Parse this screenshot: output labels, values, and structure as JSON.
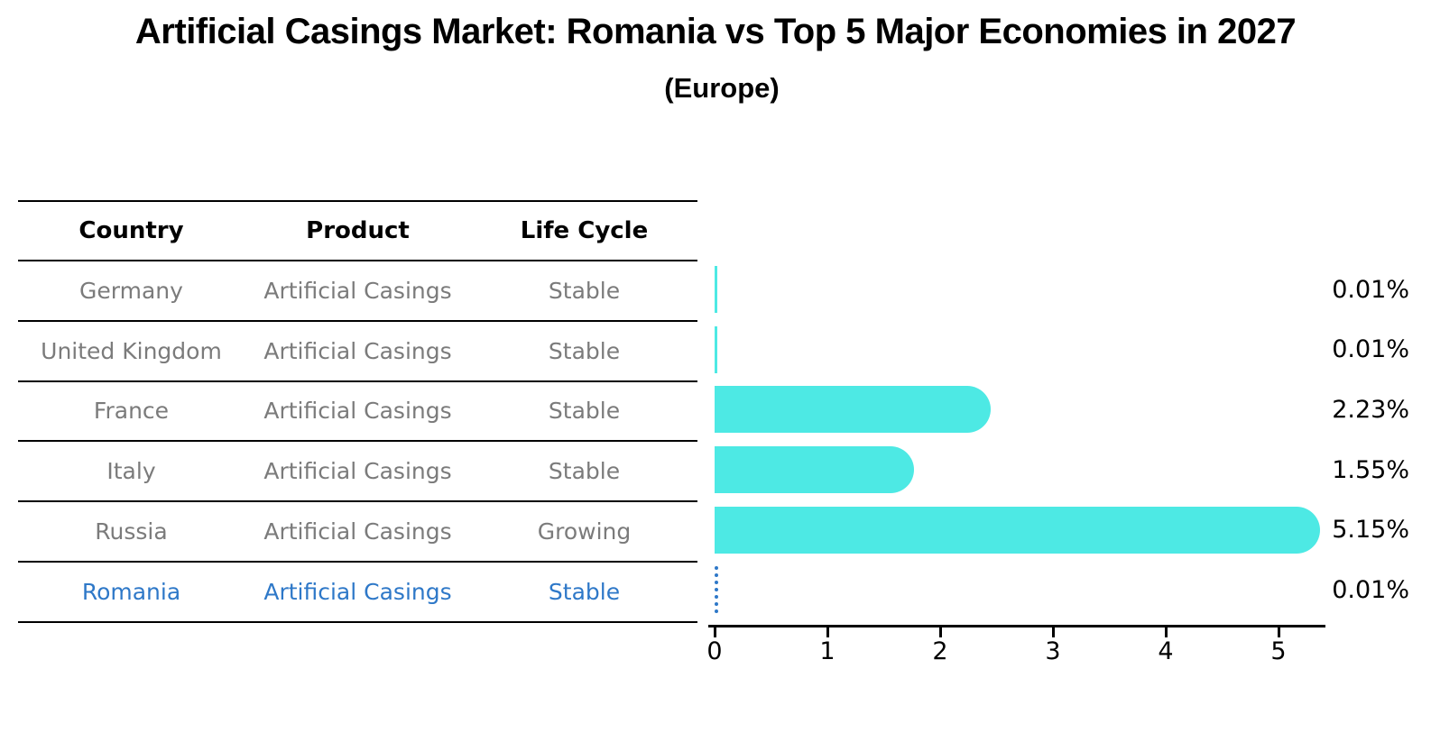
{
  "title": "Artificial Casings Market: Romania vs Top 5 Major Economies in 2027",
  "subtitle": "(Europe)",
  "table": {
    "headers": [
      "Country",
      "Product",
      "Life Cycle"
    ],
    "rows": [
      {
        "country": "Germany",
        "product": "Artificial Casings",
        "life_cycle": "Stable",
        "highlight": false
      },
      {
        "country": "United Kingdom",
        "product": "Artificial Casings",
        "life_cycle": "Stable",
        "highlight": false
      },
      {
        "country": "France",
        "product": "Artificial Casings",
        "life_cycle": "Stable",
        "highlight": false
      },
      {
        "country": "Italy",
        "product": "Artificial Casings",
        "life_cycle": "Stable",
        "highlight": false
      },
      {
        "country": "Russia",
        "product": "Artificial Casings",
        "life_cycle": "Growing",
        "highlight": false
      },
      {
        "country": "Romania",
        "product": "Artificial Casings",
        "life_cycle": "Stable",
        "highlight": true
      }
    ]
  },
  "chart_data": {
    "type": "bar",
    "orientation": "horizontal",
    "title": "Artificial Casings Market: Romania vs Top 5 Major Economies in 2027 (Europe)",
    "categories": [
      "Germany",
      "United Kingdom",
      "France",
      "Italy",
      "Russia",
      "Romania"
    ],
    "values": [
      0.01,
      0.01,
      2.23,
      1.55,
      5.15,
      0.01
    ],
    "value_labels": [
      "0.01%",
      "0.01%",
      "2.23%",
      "1.55%",
      "5.15%",
      "0.01%"
    ],
    "x_ticks": [
      0,
      1,
      2,
      3,
      4,
      5
    ],
    "xlim": [
      0,
      5.45
    ],
    "xlabel": "",
    "ylabel": "",
    "grid": false,
    "legend": false,
    "bar_color": "#4de9e4",
    "highlight_color": "#2e78c8",
    "highlight_index": 5,
    "highlight_style": "dotted-outline"
  }
}
